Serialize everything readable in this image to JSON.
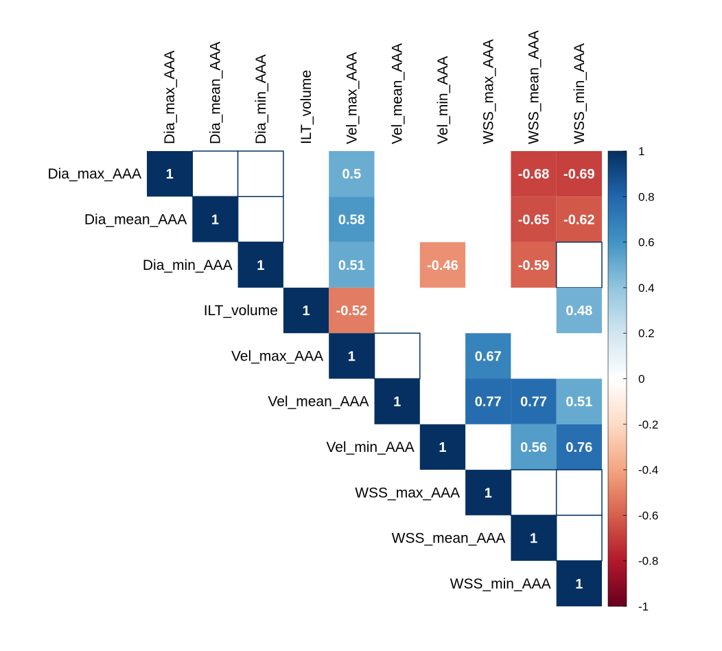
{
  "chart_data": {
    "type": "heatmap",
    "title": "",
    "variables": [
      "Dia_max_AAA",
      "Dia_mean_AAA",
      "Dia_min_AAA",
      "ILT_volume",
      "Vel_max_AAA",
      "Vel_mean_AAA",
      "Vel_min_AAA",
      "WSS_max_AAA",
      "WSS_mean_AAA",
      "WSS_min_AAA"
    ],
    "cells": [
      {
        "row": 0,
        "col": 0,
        "value": 1,
        "label": "1"
      },
      {
        "row": 0,
        "col": 1,
        "value": 0,
        "label": ""
      },
      {
        "row": 0,
        "col": 2,
        "value": 0,
        "label": ""
      },
      {
        "row": 0,
        "col": 4,
        "value": 0.5,
        "label": "0.5"
      },
      {
        "row": 0,
        "col": 8,
        "value": -0.68,
        "label": "-0.68"
      },
      {
        "row": 0,
        "col": 9,
        "value": -0.69,
        "label": "-0.69"
      },
      {
        "row": 1,
        "col": 1,
        "value": 1,
        "label": "1"
      },
      {
        "row": 1,
        "col": 2,
        "value": 0,
        "label": ""
      },
      {
        "row": 1,
        "col": 4,
        "value": 0.58,
        "label": "0.58"
      },
      {
        "row": 1,
        "col": 8,
        "value": -0.65,
        "label": "-0.65"
      },
      {
        "row": 1,
        "col": 9,
        "value": -0.62,
        "label": "-0.62"
      },
      {
        "row": 2,
        "col": 2,
        "value": 1,
        "label": "1"
      },
      {
        "row": 2,
        "col": 4,
        "value": 0.51,
        "label": "0.51"
      },
      {
        "row": 2,
        "col": 6,
        "value": -0.46,
        "label": "-0.46"
      },
      {
        "row": 2,
        "col": 8,
        "value": -0.59,
        "label": "-0.59"
      },
      {
        "row": 2,
        "col": 9,
        "value": 0,
        "label": ""
      },
      {
        "row": 3,
        "col": 3,
        "value": 1,
        "label": "1"
      },
      {
        "row": 3,
        "col": 4,
        "value": -0.52,
        "label": "-0.52"
      },
      {
        "row": 3,
        "col": 9,
        "value": 0.48,
        "label": "0.48"
      },
      {
        "row": 4,
        "col": 4,
        "value": 1,
        "label": "1"
      },
      {
        "row": 4,
        "col": 5,
        "value": 0,
        "label": ""
      },
      {
        "row": 4,
        "col": 7,
        "value": 0.67,
        "label": "0.67"
      },
      {
        "row": 5,
        "col": 5,
        "value": 1,
        "label": "1"
      },
      {
        "row": 5,
        "col": 7,
        "value": 0.77,
        "label": "0.77"
      },
      {
        "row": 5,
        "col": 8,
        "value": 0.77,
        "label": "0.77"
      },
      {
        "row": 5,
        "col": 9,
        "value": 0.51,
        "label": "0.51"
      },
      {
        "row": 6,
        "col": 6,
        "value": 1,
        "label": "1"
      },
      {
        "row": 6,
        "col": 8,
        "value": 0.56,
        "label": "0.56"
      },
      {
        "row": 6,
        "col": 9,
        "value": 0.76,
        "label": "0.76"
      },
      {
        "row": 7,
        "col": 7,
        "value": 1,
        "label": "1"
      },
      {
        "row": 7,
        "col": 8,
        "value": 0,
        "label": ""
      },
      {
        "row": 7,
        "col": 9,
        "value": 0,
        "label": ""
      },
      {
        "row": 8,
        "col": 8,
        "value": 1,
        "label": "1"
      },
      {
        "row": 8,
        "col": 9,
        "value": 0,
        "label": ""
      },
      {
        "row": 9,
        "col": 9,
        "value": 1,
        "label": "1"
      }
    ],
    "colorbar": {
      "range": [
        -1,
        1
      ],
      "ticks": [
        1,
        0.8,
        0.6,
        0.4,
        0.2,
        0,
        -0.2,
        -0.4,
        -0.6,
        -0.8,
        -1
      ],
      "tick_labels": [
        "1",
        "0.8",
        "0.6",
        "0.4",
        "0.2",
        "0",
        "-0.2",
        "-0.4",
        "-0.6",
        "-0.8",
        "-1"
      ],
      "palette": [
        "#67001F",
        "#B2182B",
        "#D6604D",
        "#F4A582",
        "#FDDBC7",
        "#FFFFFF",
        "#D1E5F0",
        "#92C5DE",
        "#4393C3",
        "#2166AC",
        "#053061"
      ]
    },
    "colors": {
      "grid_border": "#053061",
      "text_light": "#FFFFFF",
      "text_dark": "#000000"
    }
  }
}
